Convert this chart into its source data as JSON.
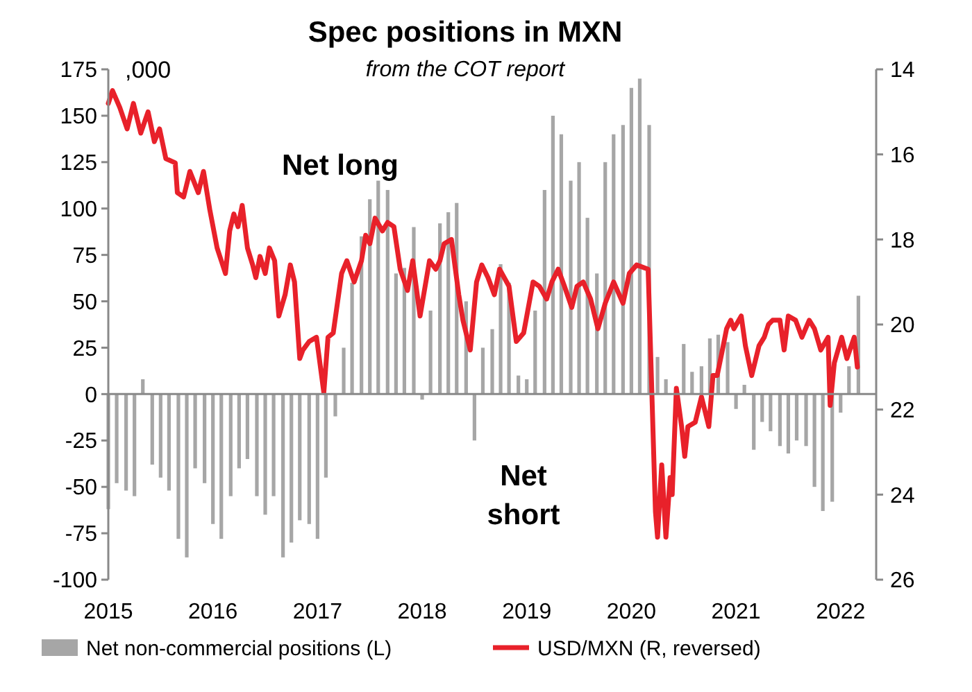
{
  "chart_data": {
    "type": "bar",
    "title": "Spec positions in MXN",
    "subtitle": "from the COT report",
    "annotations": [
      ",000",
      "Net long",
      "Net short"
    ],
    "xlim": [
      2015,
      2022.34
    ],
    "xticks": [
      2015,
      2016,
      2017,
      2018,
      2019,
      2020,
      2021,
      2022
    ],
    "ylim": [
      -100,
      175
    ],
    "yticks": [
      -100,
      -75,
      -50,
      -25,
      0,
      25,
      50,
      75,
      100,
      125,
      150,
      175
    ],
    "y2lim": [
      26,
      14
    ],
    "y2ticks": [
      14,
      16,
      18,
      20,
      22,
      24,
      26
    ],
    "legend": "bottom",
    "series": [
      {
        "name": "Net non-commercial positions (L)",
        "color": "#a6a6a6",
        "x": [
          2015.0,
          2015.08,
          2015.17,
          2015.25,
          2015.33,
          2015.42,
          2015.5,
          2015.58,
          2015.67,
          2015.75,
          2015.83,
          2015.92,
          2016.0,
          2016.08,
          2016.17,
          2016.25,
          2016.33,
          2016.42,
          2016.5,
          2016.58,
          2016.67,
          2016.75,
          2016.83,
          2016.92,
          2017.0,
          2017.08,
          2017.17,
          2017.25,
          2017.33,
          2017.42,
          2017.5,
          2017.58,
          2017.67,
          2017.75,
          2017.83,
          2017.92,
          2018.0,
          2018.08,
          2018.17,
          2018.25,
          2018.33,
          2018.42,
          2018.5,
          2018.58,
          2018.67,
          2018.75,
          2018.83,
          2018.92,
          2019.0,
          2019.08,
          2019.17,
          2019.25,
          2019.33,
          2019.42,
          2019.5,
          2019.58,
          2019.67,
          2019.75,
          2019.83,
          2019.92,
          2020.0,
          2020.08,
          2020.17,
          2020.25,
          2020.33,
          2020.5,
          2020.58,
          2020.67,
          2020.75,
          2020.83,
          2020.92,
          2021.0,
          2021.08,
          2021.17,
          2021.25,
          2021.33,
          2021.42,
          2021.5,
          2021.58,
          2021.67,
          2021.75,
          2021.83,
          2021.92,
          2022.0,
          2022.08,
          2022.17
        ],
        "values": [
          -62,
          -48,
          -52,
          -55,
          8,
          -38,
          -45,
          -52,
          -78,
          -88,
          -40,
          -48,
          -70,
          -78,
          -55,
          -40,
          -35,
          -55,
          -65,
          -55,
          -88,
          -80,
          -68,
          -70,
          -78,
          -45,
          -12,
          25,
          60,
          85,
          105,
          115,
          110,
          65,
          68,
          90,
          -3,
          45,
          92,
          98,
          103,
          50,
          -25,
          25,
          35,
          70,
          60,
          10,
          8,
          45,
          110,
          150,
          140,
          115,
          125,
          95,
          65,
          125,
          140,
          145,
          165,
          170,
          145,
          20,
          8,
          27,
          12,
          15,
          30,
          32,
          28,
          -8,
          5,
          -30,
          -15,
          -20,
          -28,
          -32,
          -25,
          -28,
          -50,
          -63,
          -58,
          -10,
          15,
          53
        ]
      },
      {
        "name": "USD/MXN (R, reversed)",
        "type": "line",
        "axis": "y2",
        "color": "#e8212a",
        "x": [
          2015.0,
          2015.04,
          2015.11,
          2015.18,
          2015.24,
          2015.31,
          2015.38,
          2015.44,
          2015.49,
          2015.55,
          2015.64,
          2015.66,
          2015.72,
          2015.78,
          2015.86,
          2015.91,
          2015.97,
          2016.04,
          2016.08,
          2016.12,
          2016.16,
          2016.2,
          2016.24,
          2016.28,
          2016.33,
          2016.38,
          2016.41,
          2016.45,
          2016.5,
          2016.54,
          2016.59,
          2016.63,
          2016.69,
          2016.74,
          2016.78,
          2016.83,
          2016.86,
          2016.92,
          2016.99,
          2017.06,
          2017.1,
          2017.15,
          2017.19,
          2017.23,
          2017.28,
          2017.35,
          2017.42,
          2017.46,
          2017.5,
          2017.55,
          2017.62,
          2017.67,
          2017.73,
          2017.79,
          2017.86,
          2017.91,
          2017.98,
          2018.07,
          2018.13,
          2018.17,
          2018.21,
          2018.28,
          2018.35,
          2018.39,
          2018.46,
          2018.52,
          2018.57,
          2018.63,
          2018.69,
          2018.74,
          2018.83,
          2018.9,
          2018.97,
          2019.06,
          2019.12,
          2019.19,
          2019.24,
          2019.3,
          2019.36,
          2019.43,
          2019.48,
          2019.54,
          2019.61,
          2019.68,
          2019.75,
          2019.83,
          2019.92,
          2019.98,
          2020.05,
          2020.16,
          2020.23,
          2020.25,
          2020.29,
          2020.33,
          2020.37,
          2020.39,
          2020.43,
          2020.48,
          2020.51,
          2020.54,
          2020.61,
          2020.67,
          2020.74,
          2020.78,
          2020.82,
          2020.87,
          2020.91,
          2020.95,
          2020.98,
          2021.05,
          2021.09,
          2021.15,
          2021.22,
          2021.27,
          2021.31,
          2021.35,
          2021.42,
          2021.46,
          2021.5,
          2021.57,
          2021.63,
          2021.7,
          2021.75,
          2021.81,
          2021.88,
          2021.9,
          2021.94,
          2022.01,
          2022.06,
          2022.13,
          2022.16
        ],
        "values": [
          14.8,
          14.5,
          14.9,
          15.4,
          14.8,
          15.5,
          15.0,
          15.7,
          15.4,
          16.1,
          16.2,
          16.9,
          17.0,
          16.4,
          16.9,
          16.4,
          17.3,
          18.2,
          18.5,
          18.8,
          17.8,
          17.4,
          17.7,
          17.2,
          18.2,
          18.6,
          18.9,
          18.4,
          18.8,
          18.2,
          18.5,
          19.8,
          19.3,
          18.6,
          19.0,
          20.8,
          20.6,
          20.4,
          20.3,
          21.6,
          20.3,
          20.2,
          19.5,
          18.8,
          18.5,
          19.0,
          18.5,
          17.9,
          18.1,
          17.5,
          17.8,
          17.6,
          17.7,
          18.7,
          19.2,
          18.5,
          19.8,
          18.5,
          18.7,
          18.5,
          18.1,
          18.0,
          19.3,
          19.9,
          20.6,
          19.0,
          18.6,
          18.9,
          19.3,
          18.7,
          19.1,
          20.4,
          20.2,
          19.0,
          19.1,
          19.4,
          19.0,
          18.7,
          19.1,
          19.6,
          19.1,
          19.0,
          19.4,
          20.1,
          19.5,
          19.0,
          19.5,
          18.8,
          18.6,
          18.7,
          24.4,
          25.0,
          23.3,
          25.0,
          23.6,
          24.0,
          21.5,
          22.4,
          23.1,
          22.4,
          22.3,
          21.7,
          22.4,
          21.2,
          21.2,
          20.6,
          20.1,
          19.9,
          20.1,
          19.8,
          20.5,
          21.2,
          20.5,
          20.3,
          20.0,
          19.9,
          19.9,
          20.6,
          19.8,
          19.9,
          20.3,
          19.9,
          20.1,
          20.6,
          20.3,
          21.9,
          20.9,
          20.3,
          20.8,
          20.3,
          21.0
        ]
      }
    ]
  }
}
